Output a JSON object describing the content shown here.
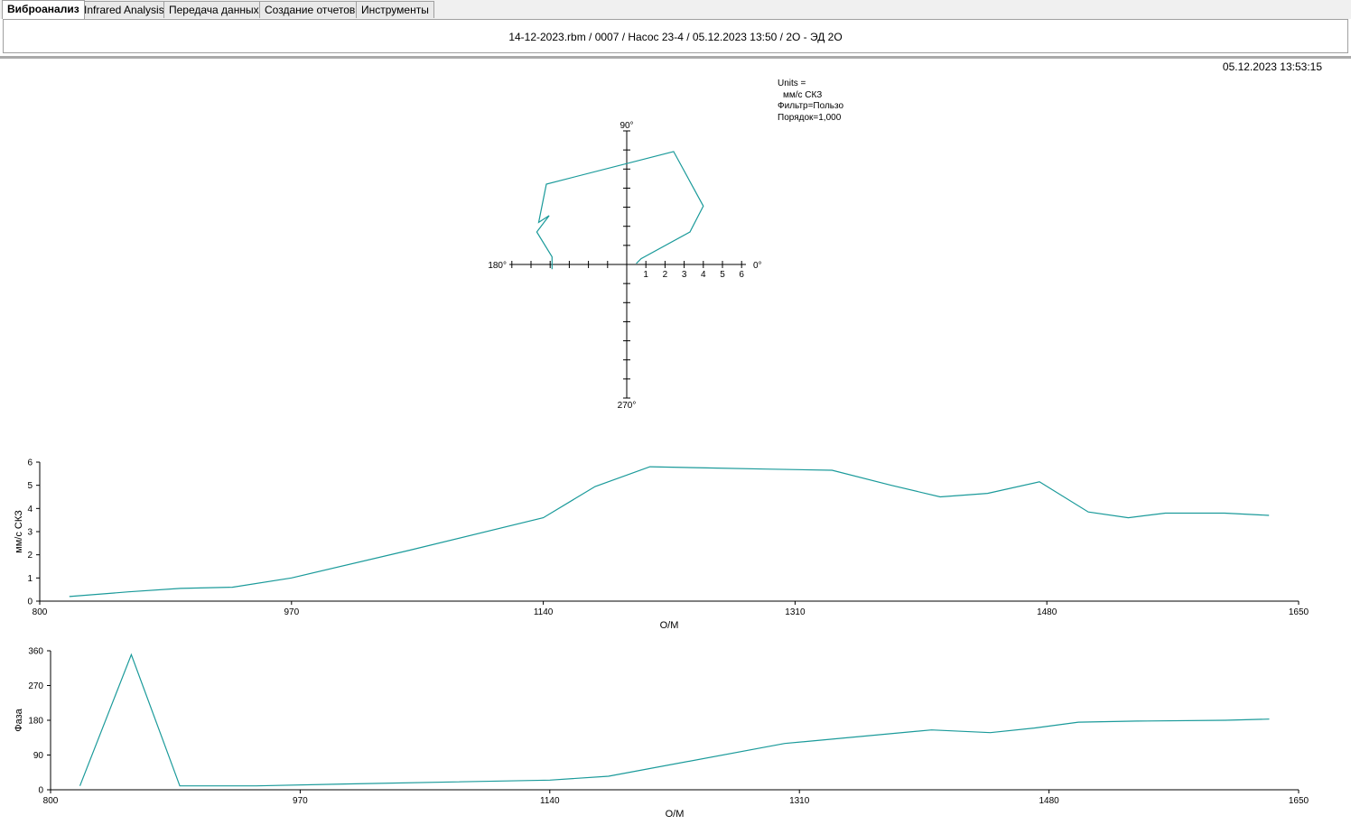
{
  "tabs": [
    {
      "label": "Виброанализ",
      "active": true
    },
    {
      "label": "Infrared Analysis",
      "active": false
    },
    {
      "label": "Передача данных",
      "active": false
    },
    {
      "label": "Создание отчетов",
      "active": false
    },
    {
      "label": "Инструменты",
      "active": false
    }
  ],
  "header": {
    "title": "14-12-2023.rbm / 0007 / Насос 23-4 / 05.12.2023 13:50 / 2O - ЭД 2O"
  },
  "timestamp": "05.12.2023 13:53:15",
  "info": {
    "units_label": "Units =",
    "units_value": "мм/с СКЗ",
    "filter": "Фильтр=Пользо",
    "order": "Порядок=1,000"
  },
  "colors": {
    "trace": "#1a9a9a",
    "axis": "#000000",
    "separator": "#a9a9a9"
  },
  "chart_data": [
    {
      "type": "polar",
      "angle_labels": {
        "0": "0°",
        "90": "90°",
        "180": "180°",
        "270": "270°"
      },
      "radial_ticks": [
        "1",
        "2",
        "3",
        "4",
        "5",
        "6"
      ],
      "rmax": 6,
      "points_xy": [
        [
          0.5,
          0.05
        ],
        [
          0.75,
          0.3
        ],
        [
          3.3,
          1.7
        ],
        [
          4.0,
          3.05
        ],
        [
          2.45,
          5.9
        ],
        [
          -4.2,
          4.2
        ],
        [
          -4.6,
          2.2
        ],
        [
          -4.05,
          2.55
        ],
        [
          -4.7,
          1.7
        ],
        [
          -3.9,
          0.4
        ],
        [
          -3.9,
          -0.25
        ]
      ]
    },
    {
      "type": "line",
      "xlabel": "О/М",
      "ylabel": "мм/с СКЗ",
      "xlim": [
        800,
        1650
      ],
      "ylim": [
        0,
        6
      ],
      "xticks": [
        800,
        970,
        1140,
        1310,
        1480,
        1650
      ],
      "yticks": [
        0,
        1,
        2,
        3,
        4,
        5,
        6
      ],
      "x": [
        820,
        860,
        895,
        930,
        970,
        1050,
        1140,
        1175,
        1212,
        1250,
        1290,
        1335,
        1375,
        1408,
        1440,
        1475,
        1508,
        1535,
        1560,
        1600,
        1630
      ],
      "y": [
        0.2,
        0.4,
        0.55,
        0.6,
        1.0,
        2.2,
        3.6,
        4.95,
        5.8,
        5.75,
        5.7,
        5.65,
        5.0,
        4.5,
        4.65,
        5.15,
        3.85,
        3.6,
        3.8,
        3.8,
        3.7
      ]
    },
    {
      "type": "line",
      "xlabel": "О/М",
      "ylabel": "Фаза",
      "xlim": [
        800,
        1650
      ],
      "ylim": [
        0,
        360
      ],
      "xticks": [
        800,
        970,
        1140,
        1310,
        1480,
        1650
      ],
      "yticks": [
        0,
        90,
        180,
        270,
        360
      ],
      "x": [
        820,
        855,
        888,
        940,
        1000,
        1140,
        1180,
        1300,
        1400,
        1440,
        1470,
        1500,
        1540,
        1600,
        1630
      ],
      "y": [
        10,
        350,
        10,
        10,
        15,
        25,
        35,
        120,
        155,
        148,
        160,
        175,
        178,
        180,
        183
      ]
    }
  ]
}
